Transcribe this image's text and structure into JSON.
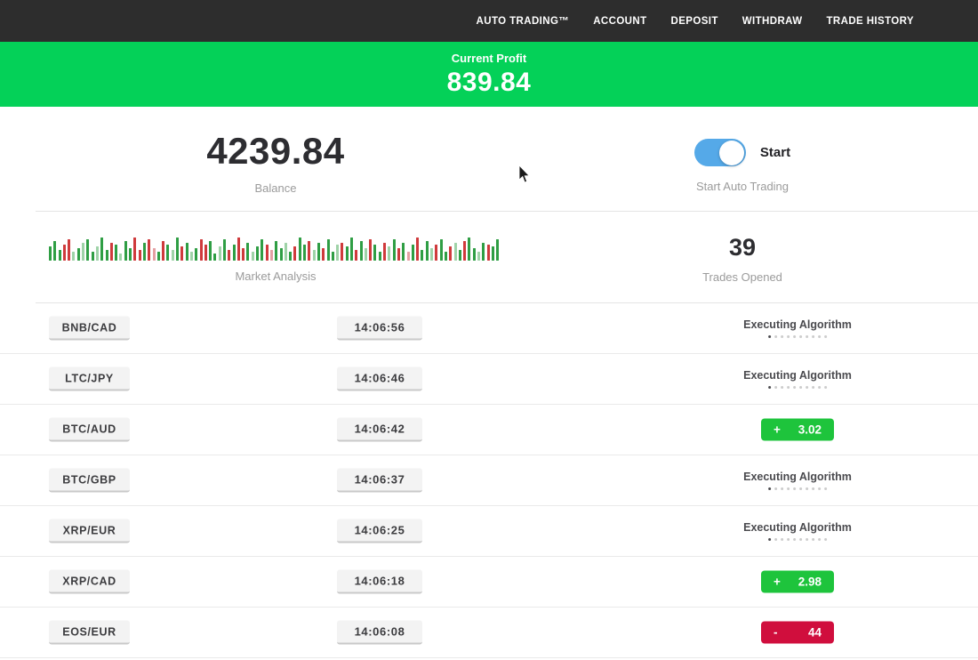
{
  "nav": {
    "items": [
      "AUTO TRADING™",
      "ACCOUNT",
      "DEPOSIT",
      "WITHDRAW",
      "TRADE HISTORY"
    ]
  },
  "banner": {
    "label": "Current Profit",
    "value": "839.84"
  },
  "stats": {
    "balance": {
      "value": "4239.84",
      "label": "Balance"
    },
    "auto_trading": {
      "toggle_label": "Start",
      "label": "Start Auto Trading",
      "state": "on"
    },
    "market_analysis": {
      "label": "Market Analysis"
    },
    "trades_opened": {
      "value": "39",
      "label": "Trades Opened"
    }
  },
  "chart_data": {
    "type": "bar",
    "title": "Market Analysis",
    "note": "decorative candle-style sparkline, no axes or tick labels shown",
    "color_map": {
      "g": "#2f9e44",
      "r": "#cf3a3c",
      "lg": "#9fd3a8",
      "lr": "#e4a0a3"
    },
    "bars": [
      [
        "g",
        16
      ],
      [
        "g",
        22
      ],
      [
        "g",
        12
      ],
      [
        "r",
        18
      ],
      [
        "r",
        24
      ],
      [
        "lg",
        10
      ],
      [
        "g",
        14
      ],
      [
        "lg",
        20
      ],
      [
        "g",
        24
      ],
      [
        "g",
        10
      ],
      [
        "lg",
        16
      ],
      [
        "g",
        26
      ],
      [
        "g",
        12
      ],
      [
        "r",
        20
      ],
      [
        "g",
        18
      ],
      [
        "lg",
        8
      ],
      [
        "g",
        22
      ],
      [
        "g",
        14
      ],
      [
        "r",
        26
      ],
      [
        "r",
        12
      ],
      [
        "g",
        20
      ],
      [
        "r",
        24
      ],
      [
        "lr",
        14
      ],
      [
        "g",
        10
      ],
      [
        "r",
        22
      ],
      [
        "g",
        18
      ],
      [
        "lg",
        12
      ],
      [
        "g",
        26
      ],
      [
        "r",
        16
      ],
      [
        "g",
        20
      ],
      [
        "lg",
        10
      ],
      [
        "g",
        14
      ],
      [
        "r",
        24
      ],
      [
        "r",
        18
      ],
      [
        "g",
        22
      ],
      [
        "g",
        8
      ],
      [
        "lg",
        16
      ],
      [
        "g",
        24
      ],
      [
        "r",
        12
      ],
      [
        "g",
        18
      ],
      [
        "r",
        26
      ],
      [
        "r",
        14
      ],
      [
        "g",
        20
      ],
      [
        "lg",
        10
      ],
      [
        "g",
        16
      ],
      [
        "g",
        24
      ],
      [
        "r",
        18
      ],
      [
        "lr",
        12
      ],
      [
        "g",
        22
      ],
      [
        "g",
        14
      ],
      [
        "lg",
        20
      ],
      [
        "g",
        10
      ],
      [
        "r",
        16
      ],
      [
        "g",
        26
      ],
      [
        "g",
        18
      ],
      [
        "r",
        22
      ],
      [
        "lg",
        12
      ],
      [
        "g",
        20
      ],
      [
        "r",
        14
      ],
      [
        "g",
        24
      ],
      [
        "g",
        10
      ],
      [
        "lg",
        18
      ],
      [
        "r",
        20
      ],
      [
        "g",
        16
      ],
      [
        "g",
        26
      ],
      [
        "r",
        12
      ],
      [
        "g",
        22
      ],
      [
        "lg",
        14
      ],
      [
        "r",
        24
      ],
      [
        "g",
        18
      ],
      [
        "g",
        10
      ],
      [
        "r",
        20
      ],
      [
        "lg",
        16
      ],
      [
        "g",
        24
      ],
      [
        "r",
        14
      ],
      [
        "g",
        20
      ],
      [
        "lr",
        10
      ],
      [
        "g",
        18
      ],
      [
        "r",
        26
      ],
      [
        "g",
        12
      ],
      [
        "g",
        22
      ],
      [
        "lg",
        14
      ],
      [
        "r",
        18
      ],
      [
        "g",
        24
      ],
      [
        "g",
        10
      ],
      [
        "r",
        16
      ],
      [
        "lg",
        20
      ],
      [
        "g",
        12
      ],
      [
        "r",
        22
      ],
      [
        "g",
        26
      ],
      [
        "g",
        14
      ],
      [
        "lg",
        10
      ],
      [
        "g",
        20
      ],
      [
        "r",
        18
      ],
      [
        "g",
        16
      ],
      [
        "g",
        24
      ]
    ]
  },
  "table": {
    "dots_count": 10,
    "rows": [
      {
        "pair": "BNB/CAD",
        "time": "14:06:56",
        "status": {
          "type": "executing",
          "label": "Executing Algorithm"
        }
      },
      {
        "pair": "LTC/JPY",
        "time": "14:06:46",
        "status": {
          "type": "executing",
          "label": "Executing Algorithm"
        }
      },
      {
        "pair": "BTC/AUD",
        "time": "14:06:42",
        "status": {
          "type": "profit",
          "sign": "+",
          "value": "3.02"
        }
      },
      {
        "pair": "BTC/GBP",
        "time": "14:06:37",
        "status": {
          "type": "executing",
          "label": "Executing Algorithm"
        }
      },
      {
        "pair": "XRP/EUR",
        "time": "14:06:25",
        "status": {
          "type": "executing",
          "label": "Executing Algorithm"
        }
      },
      {
        "pair": "XRP/CAD",
        "time": "14:06:18",
        "status": {
          "type": "profit",
          "sign": "+",
          "value": "2.98"
        }
      },
      {
        "pair": "EOS/EUR",
        "time": "14:06:08",
        "status": {
          "type": "loss",
          "sign": "-",
          "value": "44"
        }
      }
    ]
  },
  "colors": {
    "nav_bg": "#2d2d2d",
    "banner_green": "#04d158",
    "badge_green": "#1ec43c",
    "badge_red": "#d00e3d",
    "toggle_blue": "#55a9e8"
  }
}
